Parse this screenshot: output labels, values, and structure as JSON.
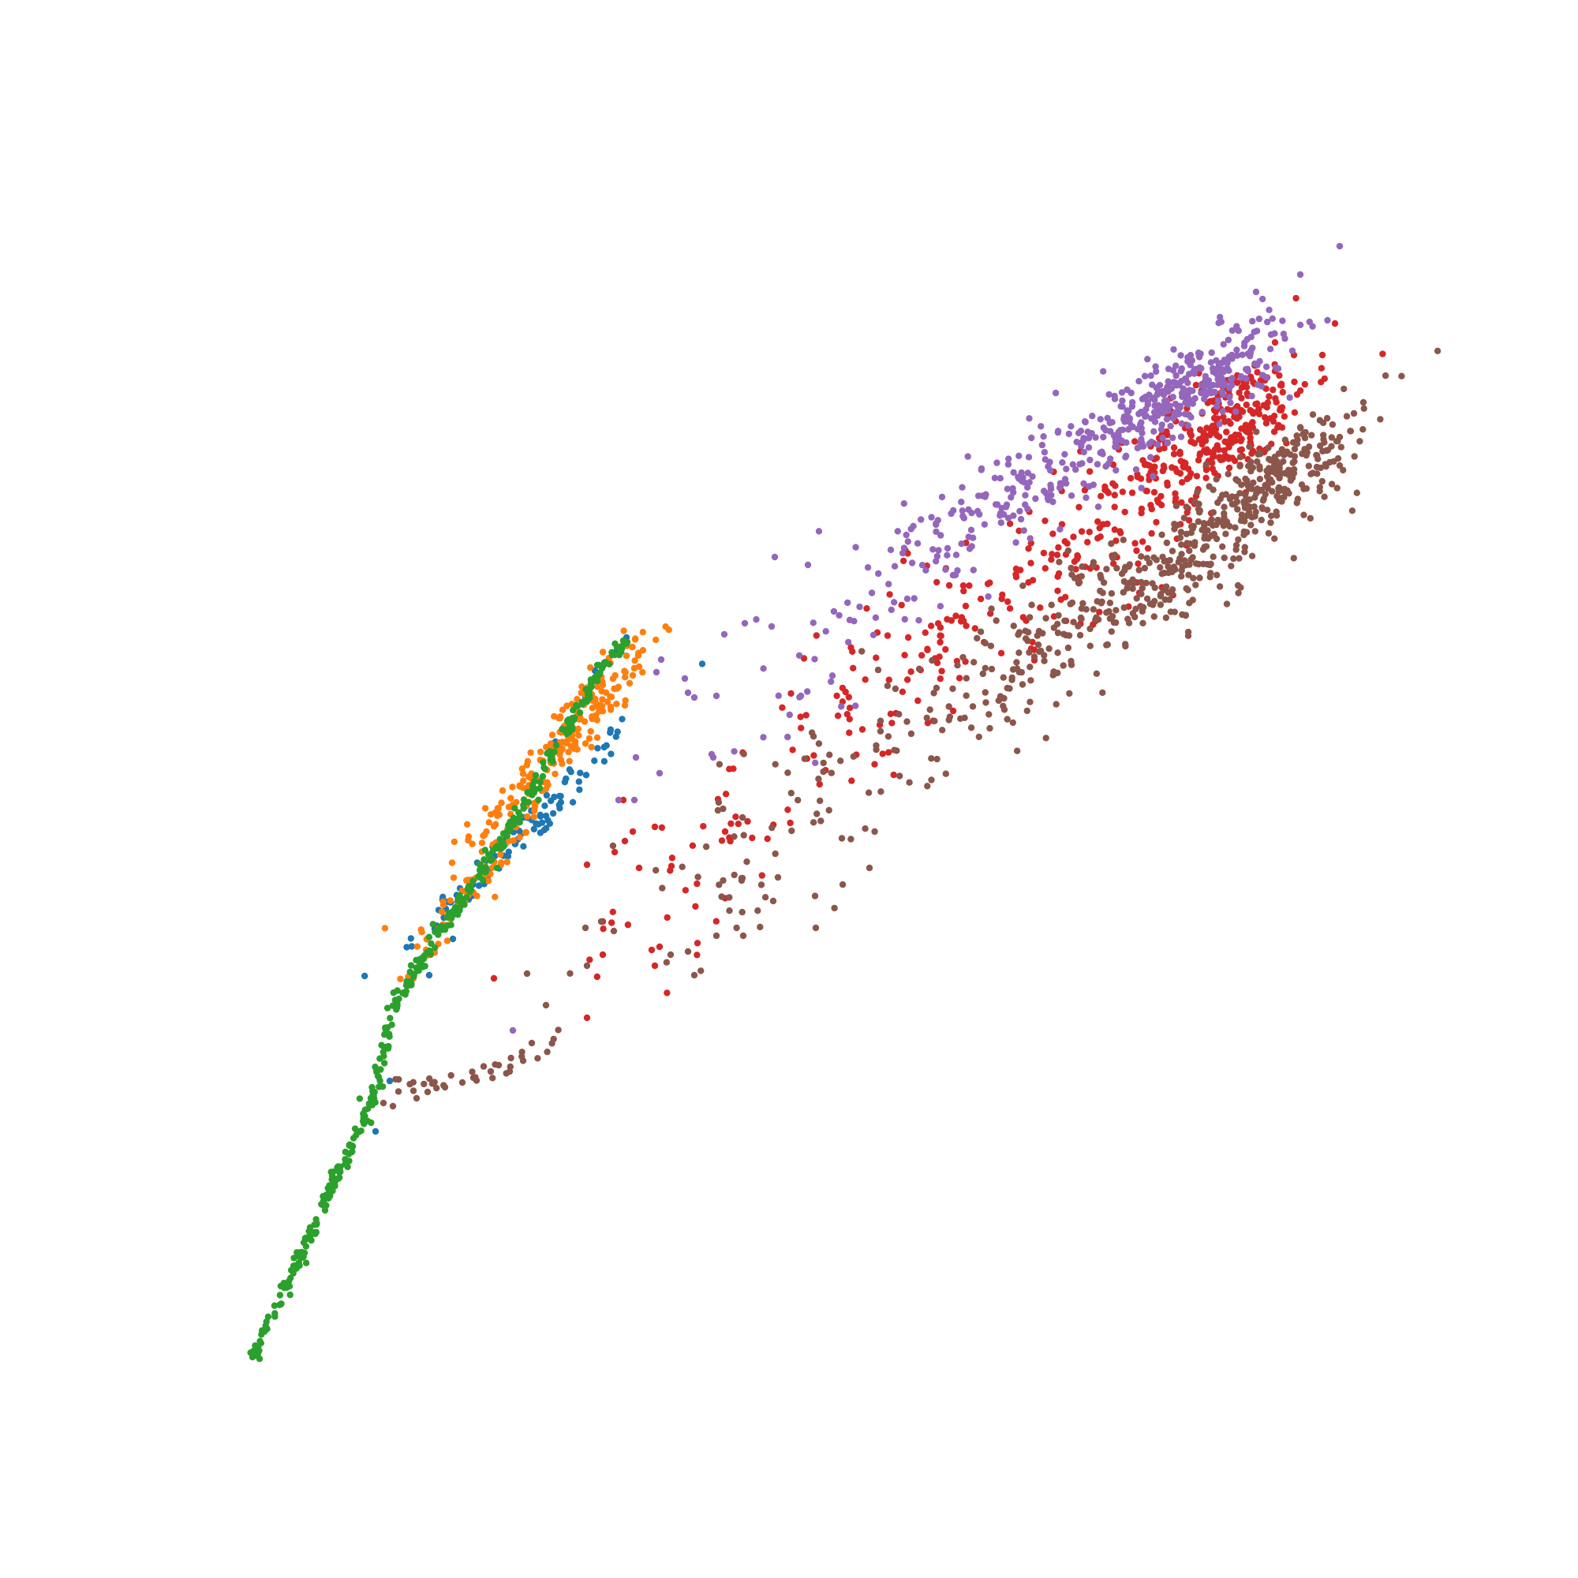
{
  "chart_data": {
    "type": "scatter",
    "title": "",
    "xlabel": "",
    "ylabel": "",
    "axes_visible": false,
    "grid": false,
    "legend": "none",
    "xlim": [
      0,
      1
    ],
    "ylim": [
      0,
      1
    ],
    "marker": "dot",
    "series": [
      {
        "color": "#1f77b4",
        "clusters": [
          {
            "cx": 0.334,
            "cy": 0.475,
            "sx": 0.04,
            "sy": 0.04,
            "rho": 0.985,
            "n": 90
          }
        ],
        "points": [
          [
            0.397,
            0.596
          ],
          [
            0.391,
            0.588
          ],
          [
            0.383,
            0.58
          ],
          [
            0.371,
            0.558
          ],
          [
            0.352,
            0.53
          ],
          [
            0.338,
            0.5
          ],
          [
            0.297,
            0.43
          ],
          [
            0.287,
            0.405
          ],
          [
            0.272,
            0.382
          ],
          [
            0.247,
            0.315
          ],
          [
            0.238,
            0.283
          ],
          [
            0.338,
            0.508
          ],
          [
            0.377,
            0.575
          ]
        ]
      },
      {
        "color": "#ff7f0e",
        "clusters": [
          {
            "cx": 0.357,
            "cy": 0.53,
            "sx": 0.028,
            "sy": 0.033,
            "rho": 0.93,
            "n": 210
          },
          {
            "cx": 0.3,
            "cy": 0.44,
            "sx": 0.022,
            "sy": 0.028,
            "rho": 0.97,
            "n": 60
          }
        ],
        "points": [
          [
            0.392,
            0.59
          ],
          [
            0.386,
            0.583
          ],
          [
            0.401,
            0.572
          ],
          [
            0.387,
            0.552
          ],
          [
            0.399,
            0.567
          ],
          [
            0.396,
            0.553
          ],
          [
            0.382,
            0.566
          ],
          [
            0.375,
            0.56
          ],
          [
            0.354,
            0.545
          ],
          [
            0.346,
            0.5
          ],
          [
            0.339,
            0.489
          ],
          [
            0.273,
            0.395
          ],
          [
            0.262,
            0.38
          ],
          [
            0.272,
            0.396
          ]
        ]
      },
      {
        "color": "#2ca02c",
        "path": [
          [
            0.16,
            0.14
          ],
          [
            0.188,
            0.198
          ],
          [
            0.195,
            0.214
          ],
          [
            0.21,
            0.248
          ],
          [
            0.225,
            0.278
          ],
          [
            0.235,
            0.3
          ],
          [
            0.24,
            0.315
          ],
          [
            0.244,
            0.34
          ],
          [
            0.25,
            0.362
          ],
          [
            0.262,
            0.385
          ],
          [
            0.28,
            0.413
          ],
          [
            0.3,
            0.44
          ],
          [
            0.32,
            0.471
          ],
          [
            0.337,
            0.497
          ],
          [
            0.352,
            0.526
          ],
          [
            0.37,
            0.556
          ],
          [
            0.386,
            0.583
          ],
          [
            0.397,
            0.592
          ]
        ],
        "path_count": 420,
        "path_jitter": 0.0018,
        "points": [
          [
            0.16,
            0.14
          ],
          [
            0.187,
            0.198
          ],
          [
            0.193,
            0.206
          ],
          [
            0.199,
            0.219
          ],
          [
            0.206,
            0.233
          ],
          [
            0.395,
            0.594
          ],
          [
            0.388,
            0.585
          ],
          [
            0.378,
            0.569
          ],
          [
            0.362,
            0.54
          ],
          [
            0.344,
            0.508
          ],
          [
            0.315,
            0.45
          ]
        ]
      },
      {
        "color": "#d62728",
        "clusters": [
          {
            "cx": 0.775,
            "cy": 0.73,
            "sx": 0.028,
            "sy": 0.022,
            "rho": 0.65,
            "n": 260
          },
          {
            "cx": 0.7,
            "cy": 0.665,
            "sx": 0.055,
            "sy": 0.04,
            "rho": 0.78,
            "n": 170
          },
          {
            "cx": 0.565,
            "cy": 0.57,
            "sx": 0.045,
            "sy": 0.045,
            "rho": 0.75,
            "n": 80
          },
          {
            "cx": 0.44,
            "cy": 0.45,
            "sx": 0.04,
            "sy": 0.04,
            "rho": 0.7,
            "n": 40
          }
        ],
        "points": [
          [
            0.846,
            0.795
          ],
          [
            0.838,
            0.775
          ],
          [
            0.82,
            0.775
          ],
          [
            0.808,
            0.783
          ],
          [
            0.822,
            0.75
          ],
          [
            0.812,
            0.74
          ],
          [
            0.815,
            0.7
          ],
          [
            0.802,
            0.715
          ],
          [
            0.372,
            0.452
          ],
          [
            0.382,
            0.416
          ],
          [
            0.382,
            0.395
          ],
          [
            0.372,
            0.355
          ],
          [
            0.313,
            0.38
          ],
          [
            0.413,
            0.398
          ],
          [
            0.418,
            0.4
          ],
          [
            0.415,
            0.388
          ],
          [
            0.405,
            0.45
          ],
          [
            0.401,
            0.473
          ],
          [
            0.396,
            0.467
          ],
          [
            0.415,
            0.476
          ],
          [
            0.395,
            0.493
          ]
        ]
      },
      {
        "color": "#9467bd",
        "clusters": [
          {
            "cx": 0.755,
            "cy": 0.755,
            "sx": 0.03,
            "sy": 0.02,
            "rho": 0.75,
            "n": 280
          },
          {
            "cx": 0.665,
            "cy": 0.7,
            "sx": 0.045,
            "sy": 0.032,
            "rho": 0.85,
            "n": 180
          },
          {
            "cx": 0.57,
            "cy": 0.63,
            "sx": 0.045,
            "sy": 0.045,
            "rho": 0.8,
            "n": 70
          }
        ],
        "points": [
          [
            0.849,
            0.844
          ],
          [
            0.824,
            0.826
          ],
          [
            0.796,
            0.815
          ],
          [
            0.491,
            0.647
          ],
          [
            0.512,
            0.642
          ],
          [
            0.489,
            0.603
          ],
          [
            0.472,
            0.605
          ],
          [
            0.459,
            0.598
          ],
          [
            0.44,
            0.558
          ],
          [
            0.434,
            0.57
          ],
          [
            0.419,
            0.582
          ],
          [
            0.416,
            0.574
          ],
          [
            0.392,
            0.493
          ],
          [
            0.402,
            0.493
          ],
          [
            0.418,
            0.51
          ],
          [
            0.452,
            0.52
          ],
          [
            0.454,
            0.559
          ],
          [
            0.436,
            0.561
          ],
          [
            0.403,
            0.52
          ],
          [
            0.451,
            0.522
          ],
          [
            0.325,
            0.347
          ]
        ]
      },
      {
        "color": "#8c564b",
        "clusters": [
          {
            "cx": 0.805,
            "cy": 0.695,
            "sx": 0.03,
            "sy": 0.025,
            "rho": 0.85,
            "n": 240
          },
          {
            "cx": 0.73,
            "cy": 0.63,
            "sx": 0.05,
            "sy": 0.035,
            "rho": 0.82,
            "n": 230
          },
          {
            "cx": 0.64,
            "cy": 0.58,
            "sx": 0.06,
            "sy": 0.04,
            "rho": 0.8,
            "n": 110
          },
          {
            "cx": 0.5,
            "cy": 0.48,
            "sx": 0.055,
            "sy": 0.045,
            "rho": 0.75,
            "n": 70
          }
        ],
        "path": [
          [
            0.25,
            0.315
          ],
          [
            0.265,
            0.31
          ],
          [
            0.28,
            0.312
          ],
          [
            0.295,
            0.318
          ],
          [
            0.312,
            0.323
          ],
          [
            0.328,
            0.326
          ],
          [
            0.342,
            0.332
          ],
          [
            0.355,
            0.345
          ]
        ],
        "path_count": 30,
        "path_jitter": 0.004,
        "points": [
          [
            0.864,
            0.745
          ],
          [
            0.858,
            0.738
          ],
          [
            0.849,
            0.723
          ],
          [
            0.849,
            0.705
          ],
          [
            0.372,
            0.388
          ],
          [
            0.371,
            0.412
          ],
          [
            0.381,
            0.416
          ],
          [
            0.389,
            0.41
          ],
          [
            0.425,
            0.395
          ],
          [
            0.436,
            0.397
          ],
          [
            0.44,
            0.382
          ],
          [
            0.454,
            0.407
          ],
          [
            0.471,
            0.407
          ],
          [
            0.517,
            0.412
          ],
          [
            0.49,
            0.429
          ],
          [
            0.493,
            0.444
          ],
          [
            0.551,
            0.45
          ],
          [
            0.47,
            0.442
          ],
          [
            0.334,
            0.383
          ],
          [
            0.346,
            0.363
          ],
          [
            0.337,
            0.339
          ],
          [
            0.249,
            0.299
          ],
          [
            0.243,
            0.301
          ],
          [
            0.264,
            0.304
          ],
          [
            0.271,
            0.308
          ],
          [
            0.282,
            0.311
          ],
          [
            0.293,
            0.314
          ],
          [
            0.3,
            0.317
          ],
          [
            0.311,
            0.321
          ],
          [
            0.316,
            0.325
          ],
          [
            0.323,
            0.321
          ]
        ]
      }
    ]
  }
}
